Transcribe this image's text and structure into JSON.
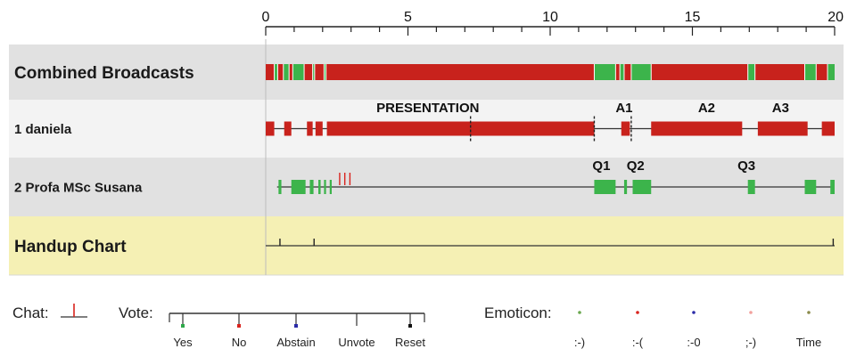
{
  "axis": {
    "min": 0,
    "max": 20,
    "ticks": [
      {
        "value": 0,
        "label": "0"
      },
      {
        "value": 5,
        "label": "5"
      },
      {
        "value": 10,
        "label": "10"
      },
      {
        "value": 15,
        "label": "15"
      },
      {
        "value": 20,
        "label": "20"
      }
    ]
  },
  "colors": {
    "talk_red": "#c8221c",
    "talk_green": "#3cb44b",
    "row_gray": "#e1e1e1",
    "row_white": "#f3f3f3",
    "row_yellow": "#f5f0b4",
    "chat_red": "#d9231d",
    "vote_yes": "#2ea84a",
    "vote_no": "#d9231d",
    "vote_abstain": "#2b2ba8",
    "vote_reset": "#111111"
  },
  "rows": [
    {
      "id": "combined",
      "label": "Combined Broadcasts",
      "background": "gray",
      "segments": [
        {
          "start": 0.0,
          "end": 0.3,
          "color": "red"
        },
        {
          "start": 0.3,
          "end": 0.42,
          "color": "green"
        },
        {
          "start": 0.42,
          "end": 0.62,
          "color": "red"
        },
        {
          "start": 0.62,
          "end": 0.82,
          "color": "green"
        },
        {
          "start": 0.82,
          "end": 0.95,
          "color": "red"
        },
        {
          "start": 0.95,
          "end": 1.35,
          "color": "green"
        },
        {
          "start": 1.35,
          "end": 1.65,
          "color": "red"
        },
        {
          "start": 1.65,
          "end": 1.72,
          "color": "green"
        },
        {
          "start": 1.72,
          "end": 2.05,
          "color": "red"
        },
        {
          "start": 2.05,
          "end": 2.12,
          "color": "green"
        },
        {
          "start": 2.12,
          "end": 11.55,
          "color": "red"
        },
        {
          "start": 11.55,
          "end": 12.3,
          "color": "green"
        },
        {
          "start": 12.3,
          "end": 12.45,
          "color": "red"
        },
        {
          "start": 12.45,
          "end": 12.6,
          "color": "green"
        },
        {
          "start": 12.6,
          "end": 12.85,
          "color": "red"
        },
        {
          "start": 12.85,
          "end": 13.55,
          "color": "green"
        },
        {
          "start": 13.55,
          "end": 16.95,
          "color": "red"
        },
        {
          "start": 16.95,
          "end": 17.2,
          "color": "green"
        },
        {
          "start": 17.2,
          "end": 18.95,
          "color": "red"
        },
        {
          "start": 18.95,
          "end": 19.35,
          "color": "green"
        },
        {
          "start": 19.35,
          "end": 19.75,
          "color": "red"
        },
        {
          "start": 19.75,
          "end": 20.0,
          "color": "green"
        }
      ],
      "labels": []
    },
    {
      "id": "daniela",
      "label": "1 daniela",
      "background": "white",
      "line_from": 0.0,
      "segments": [
        {
          "start": 0.0,
          "end": 0.3,
          "color": "red"
        },
        {
          "start": 0.65,
          "end": 0.9,
          "color": "red"
        },
        {
          "start": 1.45,
          "end": 1.65,
          "color": "red"
        },
        {
          "start": 1.75,
          "end": 2.0,
          "color": "red"
        },
        {
          "start": 2.15,
          "end": 11.55,
          "color": "red"
        },
        {
          "start": 12.5,
          "end": 12.8,
          "color": "red"
        },
        {
          "start": 13.55,
          "end": 16.75,
          "color": "red"
        },
        {
          "start": 17.3,
          "end": 19.05,
          "color": "red"
        },
        {
          "start": 19.55,
          "end": 20.0,
          "color": "red"
        }
      ],
      "labels": [
        {
          "at": 5.7,
          "text": "PRESENTATION"
        },
        {
          "at": 12.6,
          "text": "A1"
        },
        {
          "at": 15.5,
          "text": "A2"
        },
        {
          "at": 18.1,
          "text": "A3"
        }
      ],
      "markers": [
        7.2,
        11.55,
        12.85
      ]
    },
    {
      "id": "susana",
      "label": "2 Profa MSc Susana",
      "background": "gray",
      "line_from": 0.4,
      "segments": [
        {
          "start": 0.45,
          "end": 0.55,
          "color": "green"
        },
        {
          "start": 0.9,
          "end": 1.4,
          "color": "green"
        },
        {
          "start": 1.55,
          "end": 1.68,
          "color": "green"
        },
        {
          "start": 1.85,
          "end": 1.93,
          "color": "green"
        },
        {
          "start": 2.05,
          "end": 2.12,
          "color": "green"
        },
        {
          "start": 2.25,
          "end": 2.32,
          "color": "green"
        },
        {
          "start": 11.55,
          "end": 12.3,
          "color": "green"
        },
        {
          "start": 12.6,
          "end": 12.7,
          "color": "green"
        },
        {
          "start": 12.9,
          "end": 13.55,
          "color": "green"
        },
        {
          "start": 16.95,
          "end": 17.2,
          "color": "green"
        },
        {
          "start": 18.95,
          "end": 19.35,
          "color": "green"
        },
        {
          "start": 19.85,
          "end": 20.0,
          "color": "green"
        }
      ],
      "chats": [
        2.6,
        2.78,
        2.96
      ],
      "labels": [
        {
          "at": 11.8,
          "text": "Q1"
        },
        {
          "at": 13.0,
          "text": "Q2"
        },
        {
          "at": 16.9,
          "text": "Q3"
        }
      ]
    },
    {
      "id": "handup",
      "label": "Handup Chart",
      "background": "yellow",
      "line_from": 0.0,
      "segments": [],
      "labels": [],
      "handups": [
        0.5,
        1.7,
        19.95
      ]
    }
  ],
  "legend": {
    "chat_label": "Chat:",
    "vote_label": "Vote:",
    "vote_items": [
      {
        "label": "Yes",
        "color": "vote_yes"
      },
      {
        "label": "No",
        "color": "vote_no"
      },
      {
        "label": "Abstain",
        "color": "vote_abstain"
      },
      {
        "label": "Unvote",
        "color": "none"
      },
      {
        "label": "Reset",
        "color": "vote_reset"
      }
    ],
    "emoticon_label": "Emoticon:",
    "emoticon_items": [
      {
        "label": ":-)",
        "color": "#6aa84f"
      },
      {
        "label": ":-(",
        "color": "#d9231d"
      },
      {
        "label": ":-0",
        "color": "#2b2ba8"
      },
      {
        "label": ";-)",
        "color": "#f2a09c"
      },
      {
        "label": "Time",
        "color": "#8a8a4a"
      }
    ]
  }
}
